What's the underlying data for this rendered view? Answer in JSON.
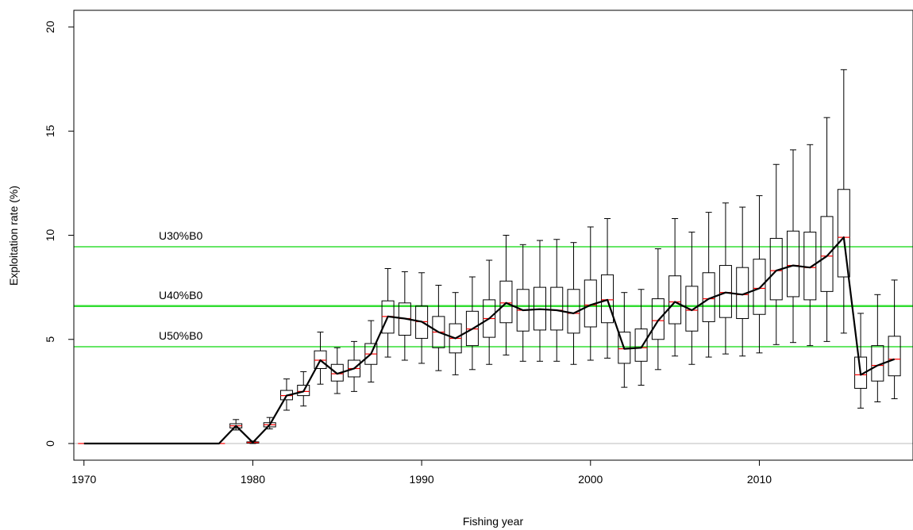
{
  "chart_data": {
    "type": "boxplot-line",
    "xlabel": "Fishing year",
    "ylabel": "Exploitation rate (%)",
    "xlim": [
      1969.4,
      2019.1
    ],
    "ylim": [
      -0.8,
      20.8
    ],
    "x_ticks": [
      1970,
      1980,
      1990,
      2000,
      2010
    ],
    "y_ticks": [
      0,
      5,
      10,
      15,
      20
    ],
    "reference_lines": [
      {
        "label": "U30%B0",
        "value": 9.45,
        "color": "#33dd33"
      },
      {
        "label": "U40%B0",
        "value": 6.6,
        "color": "#33dd33"
      },
      {
        "label": "U50%B0",
        "value": 4.65,
        "color": "#33dd33"
      }
    ],
    "zero_line": {
      "value": 0,
      "color": "#bbbbbb"
    },
    "colors": {
      "median_line": "#000000",
      "box_median": "#ff0000",
      "box": "#000000"
    },
    "years": [
      1970,
      1971,
      1972,
      1973,
      1974,
      1975,
      1976,
      1977,
      1978,
      1979,
      1980,
      1981,
      1982,
      1983,
      1984,
      1985,
      1986,
      1987,
      1988,
      1989,
      1990,
      1991,
      1992,
      1993,
      1994,
      1995,
      1996,
      1997,
      1998,
      1999,
      2000,
      2001,
      2002,
      2003,
      2004,
      2005,
      2006,
      2007,
      2008,
      2009,
      2010,
      2011,
      2012,
      2013,
      2014,
      2015,
      2016,
      2017,
      2018
    ],
    "median": [
      0,
      0,
      0,
      0,
      0,
      0,
      0,
      0,
      0,
      0.85,
      0.05,
      0.9,
      2.3,
      2.5,
      4.0,
      3.35,
      3.6,
      4.3,
      6.1,
      6.0,
      5.85,
      5.35,
      5.05,
      5.5,
      6.0,
      6.75,
      6.4,
      6.45,
      6.4,
      6.25,
      6.65,
      6.9,
      4.55,
      4.6,
      5.9,
      6.8,
      6.4,
      6.95,
      7.25,
      7.15,
      7.45,
      8.3,
      8.55,
      8.45,
      9.0,
      9.9,
      3.3,
      3.75,
      4.05
    ],
    "q1": [
      0,
      0,
      0,
      0,
      0,
      0,
      0,
      0,
      0,
      0.75,
      0.02,
      0.8,
      2.1,
      2.3,
      3.6,
      3.0,
      3.2,
      3.8,
      5.3,
      5.2,
      5.05,
      4.6,
      4.35,
      4.7,
      5.1,
      5.8,
      5.4,
      5.45,
      5.45,
      5.3,
      5.6,
      5.8,
      3.85,
      3.95,
      5.0,
      5.75,
      5.4,
      5.85,
      6.05,
      6.0,
      6.2,
      6.9,
      7.05,
      6.9,
      7.3,
      8.0,
      2.65,
      3.0,
      3.25
    ],
    "q3": [
      0,
      0,
      0,
      0,
      0,
      0,
      0,
      0,
      0,
      0.95,
      0.08,
      1.0,
      2.55,
      2.8,
      4.45,
      3.8,
      4.0,
      4.8,
      6.85,
      6.75,
      6.6,
      6.1,
      5.75,
      6.35,
      6.9,
      7.8,
      7.4,
      7.5,
      7.5,
      7.4,
      7.85,
      8.1,
      5.35,
      5.5,
      6.95,
      8.05,
      7.55,
      8.2,
      8.55,
      8.45,
      8.85,
      9.85,
      10.2,
      10.15,
      10.9,
      12.2,
      4.15,
      4.7,
      5.15
    ],
    "whisker_low": [
      0,
      0,
      0,
      0,
      0,
      0,
      0,
      0,
      0,
      0.65,
      0.0,
      0.7,
      1.6,
      1.8,
      2.85,
      2.4,
      2.5,
      2.95,
      4.15,
      4.0,
      3.85,
      3.5,
      3.3,
      3.55,
      3.8,
      4.25,
      3.95,
      3.95,
      3.95,
      3.8,
      4.0,
      4.1,
      2.7,
      2.8,
      3.55,
      4.2,
      3.8,
      4.15,
      4.3,
      4.2,
      4.35,
      4.75,
      4.85,
      4.7,
      4.9,
      5.3,
      1.7,
      2.0,
      2.15
    ],
    "whisker_high": [
      0,
      0,
      0,
      0,
      0,
      0,
      0,
      0,
      0,
      1.15,
      0.12,
      1.25,
      3.1,
      3.45,
      5.35,
      4.6,
      4.9,
      5.9,
      8.4,
      8.25,
      8.2,
      7.6,
      7.25,
      8.0,
      8.8,
      10.0,
      9.55,
      9.75,
      9.8,
      9.65,
      10.4,
      10.8,
      7.25,
      7.4,
      9.35,
      10.8,
      10.15,
      11.1,
      11.55,
      11.35,
      11.9,
      13.4,
      14.1,
      14.35,
      15.65,
      17.95,
      6.25,
      7.15,
      7.85
    ]
  }
}
